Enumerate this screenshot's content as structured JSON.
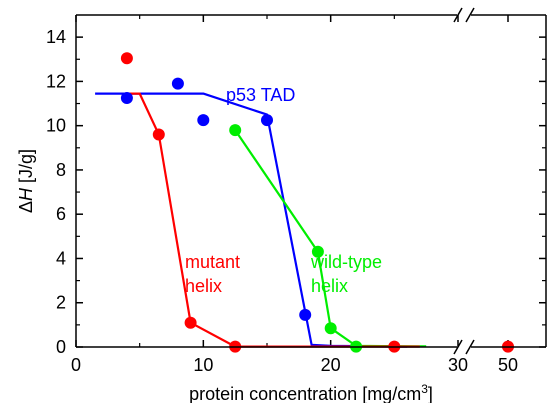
{
  "chart_data": {
    "type": "line",
    "xlabel": "protein concentration [mg/cm",
    "xlabel_sup": "3",
    "xlabel_tail": "]",
    "ylabel_delta": "Δ",
    "ylabel_var": "H",
    "ylabel_unit": " [J/g]",
    "axis_break": "//",
    "x_ticks": [
      0,
      10,
      20,
      30,
      50
    ],
    "y_ticks": [
      0,
      2,
      4,
      6,
      8,
      10,
      12,
      14
    ],
    "ylim": [
      0,
      15
    ],
    "xlim": [
      0,
      52
    ],
    "x_break": [
      30,
      48
    ],
    "series": [
      {
        "name": "p53 TAD",
        "color": "#0000ff",
        "points": [
          [
            4,
            11.25
          ],
          [
            8,
            11.9
          ],
          [
            10,
            10.25
          ],
          [
            15,
            10.25
          ],
          [
            18,
            1.45
          ]
        ],
        "fit": [
          [
            1.5,
            11.45
          ],
          [
            10,
            11.45
          ],
          [
            15,
            10.5
          ],
          [
            18.5,
            0.1
          ],
          [
            20,
            0.05
          ],
          [
            26,
            0.02
          ]
        ]
      },
      {
        "name": "wild-type helix",
        "label_lines": [
          "wild-type",
          "helix"
        ],
        "color": "#00ee00",
        "points": [
          [
            12.5,
            9.8
          ],
          [
            19,
            4.3
          ],
          [
            20,
            0.85
          ],
          [
            22,
            0.02
          ]
        ],
        "fit": [
          [
            12.5,
            9.8
          ],
          [
            19,
            4.3
          ],
          [
            20,
            0.85
          ],
          [
            22,
            0.05
          ],
          [
            27.5,
            0.03
          ]
        ]
      },
      {
        "name": "mutant helix",
        "label_lines": [
          "mutant",
          "helix"
        ],
        "color": "#ff0000",
        "points": [
          [
            4,
            13.05
          ],
          [
            6.5,
            9.6
          ],
          [
            9,
            1.1
          ],
          [
            12.5,
            0.02
          ],
          [
            25,
            0.02
          ],
          [
            50,
            0.02
          ]
        ],
        "fit": [
          [
            4,
            11.45
          ],
          [
            5,
            11.45
          ],
          [
            6.5,
            9.6
          ],
          [
            9,
            1.1
          ],
          [
            12.5,
            0.02
          ],
          [
            27,
            0.02
          ]
        ]
      }
    ]
  }
}
